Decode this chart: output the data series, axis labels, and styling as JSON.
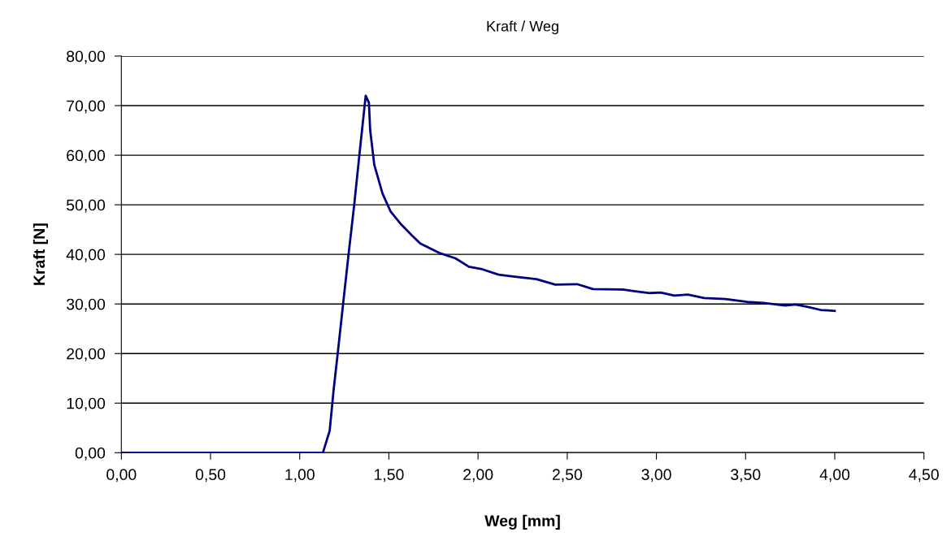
{
  "chart_data": {
    "type": "line",
    "title": "Kraft / Weg",
    "xlabel": "Weg [mm]",
    "ylabel": "Kraft [N]",
    "x": [
      0.0,
      0.5,
      1.0,
      1.13,
      1.168,
      1.19,
      1.214,
      1.244,
      1.274,
      1.305,
      1.335,
      1.37,
      1.388,
      1.395,
      1.418,
      1.464,
      1.509,
      1.57,
      1.63,
      1.676,
      1.782,
      1.873,
      1.949,
      2.024,
      2.115,
      2.206,
      2.327,
      2.433,
      2.555,
      2.645,
      2.812,
      2.873,
      2.964,
      3.024,
      3.1,
      3.176,
      3.267,
      3.388,
      3.509,
      3.6,
      3.721,
      3.78,
      3.85,
      3.92,
      4.0
    ],
    "series": [
      {
        "color": "#000080",
        "values": [
          0,
          0,
          0,
          0,
          4.4,
          12.6,
          20.3,
          30.2,
          40,
          49.8,
          60.2,
          72,
          70.6,
          65.1,
          58.1,
          52.3,
          48.7,
          46,
          43.8,
          42.2,
          40.3,
          39.2,
          37.5,
          37,
          35.9,
          35.5,
          35,
          33.9,
          34,
          33,
          32.9,
          32.6,
          32.2,
          32.3,
          31.7,
          31.9,
          31.2,
          31,
          30.4,
          30.2,
          29.7,
          29.9,
          29.4,
          28.8,
          28.6
        ]
      }
    ],
    "xlim": [
      0,
      4.5
    ],
    "ylim": [
      0,
      80
    ],
    "xticks": [
      {
        "value": 0,
        "label": "0,00"
      },
      {
        "value": 0.5,
        "label": "0,50"
      },
      {
        "value": 1,
        "label": "1,00"
      },
      {
        "value": 1.5,
        "label": "1,50"
      },
      {
        "value": 2,
        "label": "2,00"
      },
      {
        "value": 2.5,
        "label": "2,50"
      },
      {
        "value": 3,
        "label": "3,00"
      },
      {
        "value": 3.5,
        "label": "3,50"
      },
      {
        "value": 4,
        "label": "4,00"
      },
      {
        "value": 4.5,
        "label": "4,50"
      }
    ],
    "yticks": [
      {
        "value": 0,
        "label": "0,00"
      },
      {
        "value": 10,
        "label": "10,00"
      },
      {
        "value": 20,
        "label": "20,00"
      },
      {
        "value": 30,
        "label": "30,00"
      },
      {
        "value": 40,
        "label": "40,00"
      },
      {
        "value": 50,
        "label": "50,00"
      },
      {
        "value": 60,
        "label": "60,00"
      },
      {
        "value": 70,
        "label": "70,00"
      },
      {
        "value": 80,
        "label": "80,00"
      }
    ],
    "grid": "y",
    "line_style": "solid",
    "marker": "none"
  }
}
